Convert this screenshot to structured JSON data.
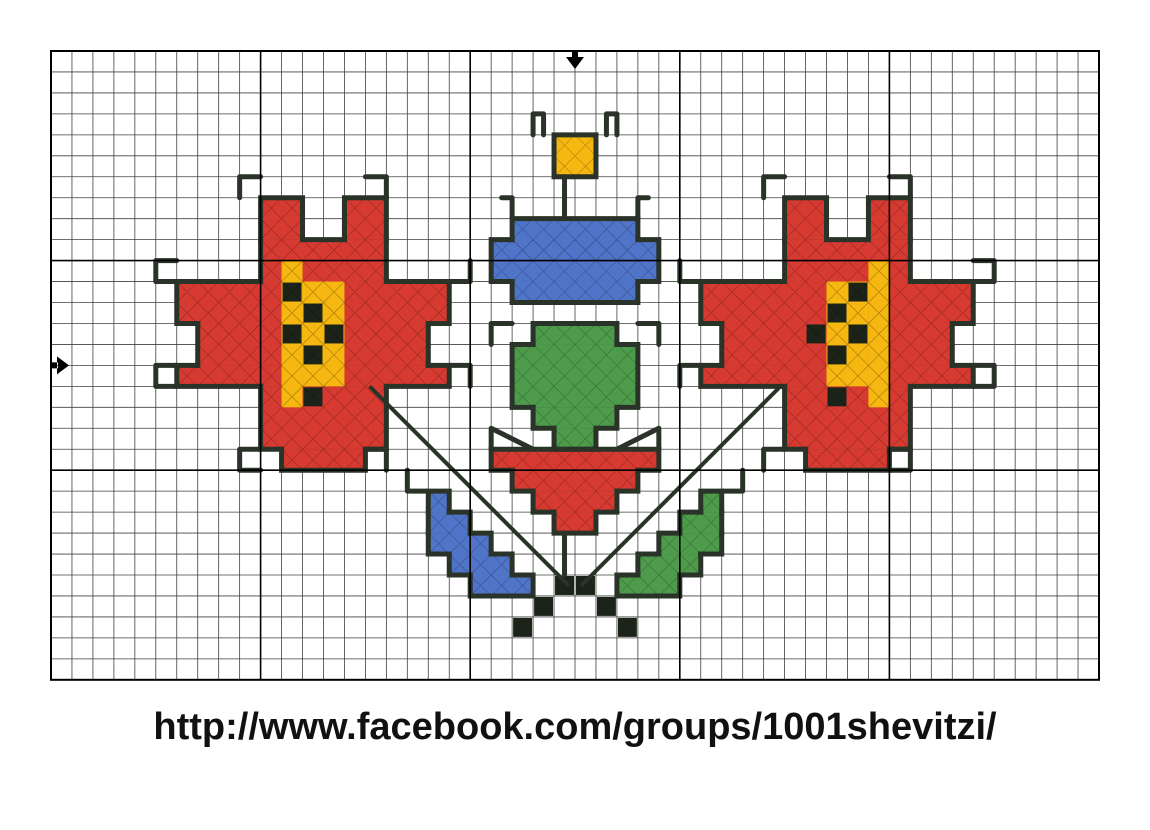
{
  "pattern": {
    "grid": {
      "columns": 50,
      "rows": 30,
      "major_every": 10
    },
    "colors": {
      "red": "#d63a31",
      "yellow": "#f5b710",
      "blue": "#4f74c8",
      "green": "#4e9b4c",
      "outline": "#2a3327",
      "black": "#1c241a",
      "grid_line": "#000000"
    },
    "center_markers": [
      {
        "name": "top-center-arrow-icon",
        "axis": "column",
        "at": 25
      },
      {
        "name": "left-center-arrow-icon",
        "axis": "row",
        "at": 15
      }
    ]
  },
  "footer": {
    "url": "http://www.facebook.com/groups/1001shevitzi/"
  }
}
